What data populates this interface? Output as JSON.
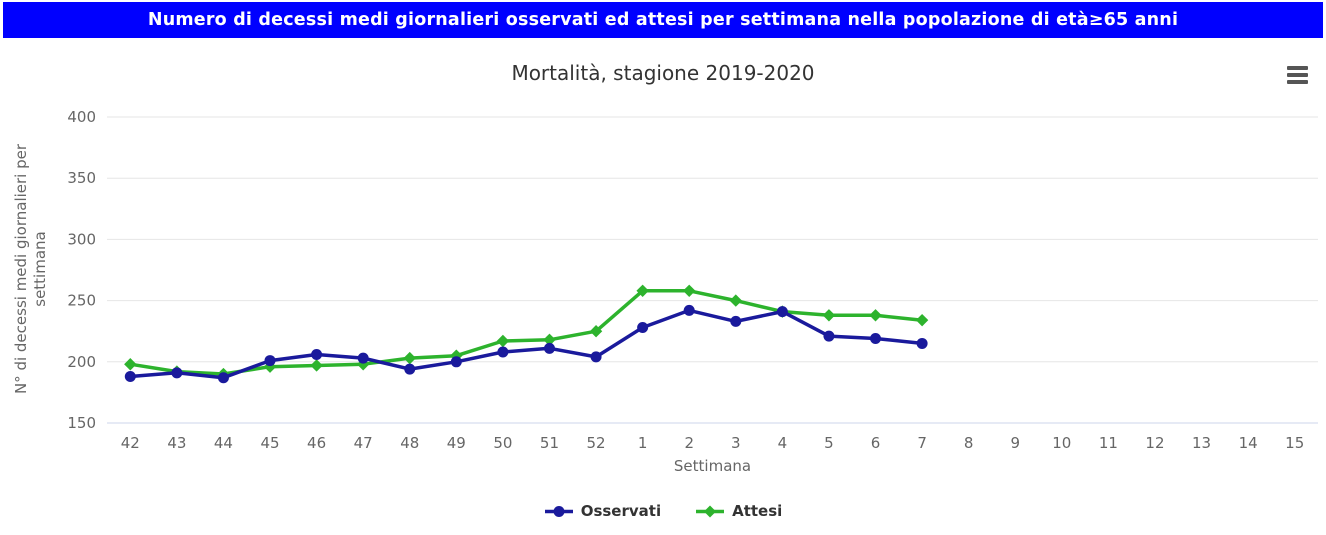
{
  "banner": {
    "text": "Numero di decessi medi giornalieri osservati ed attesi per settimana nella popolazione di età≥65 anni",
    "background_color": "#0000ff",
    "text_color": "#ffffff"
  },
  "toolbar": {
    "menu_icon": "hamburger-export-menu"
  },
  "chart_data": {
    "type": "line",
    "title": "Mortalità, stagione 2019-2020",
    "xlabel": "Settimana",
    "ylabel": "N° di decessi medi giornalieri per settimana",
    "ylim": [
      150,
      400
    ],
    "yticks": [
      150,
      200,
      250,
      300,
      350,
      400
    ],
    "grid": true,
    "grid_color": "#e6e6e6",
    "axis_line_color": "#ccd6eb",
    "tick_label_color": "#666666",
    "legend_position": "bottom",
    "categories": [
      "42",
      "43",
      "44",
      "45",
      "46",
      "47",
      "48",
      "49",
      "50",
      "51",
      "52",
      "1",
      "2",
      "3",
      "4",
      "5",
      "6",
      "7",
      "8",
      "9",
      "10",
      "11",
      "12",
      "13",
      "14",
      "15"
    ],
    "series": [
      {
        "name": "Osservati",
        "color": "#1a1a9c",
        "marker": "circle",
        "values": [
          188,
          191,
          187,
          201,
          206,
          203,
          194,
          200,
          208,
          211,
          204,
          228,
          242,
          233,
          241,
          221,
          219,
          215,
          null,
          null,
          null,
          null,
          null,
          null,
          null,
          null
        ]
      },
      {
        "name": "Attesi",
        "color": "#2db32d",
        "marker": "diamond",
        "values": [
          198,
          192,
          190,
          196,
          197,
          198,
          203,
          205,
          217,
          218,
          225,
          258,
          258,
          250,
          241,
          238,
          238,
          234,
          null,
          null,
          null,
          null,
          null,
          null,
          null,
          null
        ]
      }
    ]
  }
}
